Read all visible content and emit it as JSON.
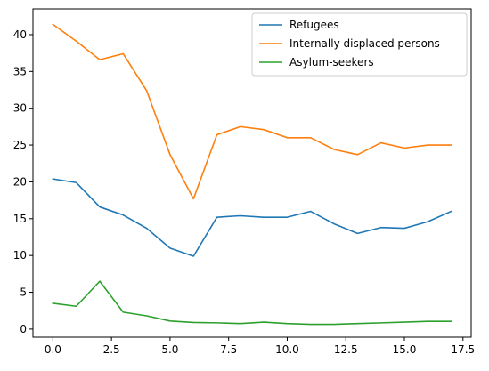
{
  "chart_data": {
    "type": "line",
    "title": "",
    "xlabel": "",
    "ylabel": "",
    "x": [
      0,
      1,
      2,
      3,
      4,
      5,
      6,
      7,
      8,
      9,
      10,
      11,
      12,
      13,
      14,
      15,
      16,
      17
    ],
    "xlim": [
      -0.85,
      17.85
    ],
    "ylim": [
      -1.1,
      43.5
    ],
    "x_ticks": [
      0,
      2.5,
      5,
      7.5,
      10,
      12.5,
      15,
      17.5
    ],
    "x_tick_labels": [
      "0.0",
      "2.5",
      "5.0",
      "7.5",
      "10.0",
      "12.5",
      "15.0",
      "17.5"
    ],
    "y_ticks": [
      0,
      5,
      10,
      15,
      20,
      25,
      30,
      35,
      40
    ],
    "y_tick_labels": [
      "0",
      "5",
      "10",
      "15",
      "20",
      "25",
      "30",
      "35",
      "40"
    ],
    "grid": false,
    "legend_position": "top-right",
    "series": [
      {
        "name": "Refugees",
        "color": "#1f77b4",
        "values": [
          20.4,
          19.9,
          16.6,
          15.5,
          13.7,
          11.0,
          9.9,
          15.2,
          15.4,
          15.2,
          15.2,
          16.0,
          14.3,
          13.0,
          13.8,
          13.7,
          14.6,
          16.0
        ]
      },
      {
        "name": "Internally displaced persons",
        "color": "#ff7f0e",
        "values": [
          41.4,
          39.1,
          36.6,
          37.4,
          32.4,
          23.7,
          17.7,
          26.4,
          27.5,
          27.1,
          26.0,
          26.0,
          24.4,
          23.7,
          25.3,
          24.6,
          25.0,
          25.0
        ]
      },
      {
        "name": "Asylum-seekers",
        "color": "#2ca02c",
        "values": [
          3.5,
          3.1,
          6.5,
          2.3,
          1.8,
          1.1,
          0.9,
          0.85,
          0.75,
          0.95,
          0.75,
          0.65,
          0.65,
          0.75,
          0.85,
          0.95,
          1.05,
          1.05
        ]
      }
    ]
  }
}
